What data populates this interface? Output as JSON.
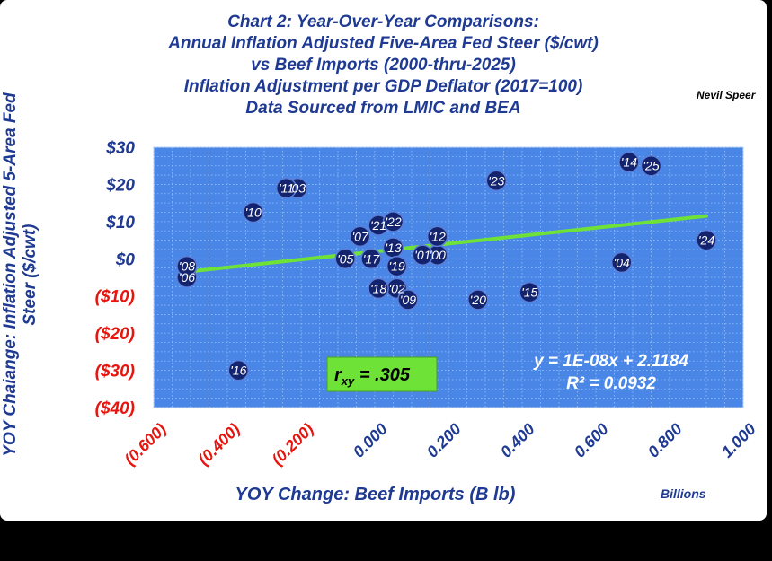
{
  "chart_data": {
    "type": "scatter",
    "title_lines": [
      "Chart 2:  Year-Over-Year Comparisons:",
      "Annual Inflation Adjusted Five-Area Fed Steer ($/cwt)",
      "vs Beef Imports (2000-thru-2025)",
      "Inflation Adjustment per GDP Deflator (2017=100)",
      "Data Sourced from LMIC and BEA"
    ],
    "author": "Nevil Speer",
    "xlabel": "YOY Change:  Beef Imports (B lb)",
    "xunit": "Billions",
    "ylabel": "YOY Chaiange: Inflation Adjusted 5-Area Fed Steer ($/cwt)",
    "xlim": [
      -0.6,
      1.0
    ],
    "ylim": [
      -40,
      30
    ],
    "x_ticks": [
      -0.6,
      -0.4,
      -0.2,
      0.0,
      0.2,
      0.4,
      0.6,
      0.8,
      1.0
    ],
    "x_tick_labels": [
      "(0.600)",
      "(0.400)",
      "(0.200)",
      "0.000",
      "0.200",
      "0.400",
      "0.600",
      "0.800",
      "1.000"
    ],
    "y_ticks": [
      30,
      20,
      10,
      0,
      -10,
      -20,
      -30,
      -40
    ],
    "y_tick_labels": [
      "$30",
      "$20",
      "$10",
      "$0",
      "($10)",
      "($20)",
      "($30)",
      "($40)"
    ],
    "grid": true,
    "series": [
      {
        "points": [
          {
            "label": "'00",
            "x": 0.17,
            "y": 1
          },
          {
            "label": "'01",
            "x": 0.13,
            "y": 1
          },
          {
            "label": "'02",
            "x": 0.06,
            "y": -8
          },
          {
            "label": "'03",
            "x": -0.21,
            "y": 19
          },
          {
            "label": "'04",
            "x": 0.67,
            "y": -1
          },
          {
            "label": "'05",
            "x": -0.08,
            "y": 0
          },
          {
            "label": "'06",
            "x": -0.51,
            "y": -5
          },
          {
            "label": "'07",
            "x": -0.04,
            "y": 6
          },
          {
            "label": "'08",
            "x": -0.51,
            "y": -2
          },
          {
            "label": "'09",
            "x": 0.09,
            "y": -11
          },
          {
            "label": "'10",
            "x": -0.33,
            "y": 12.5
          },
          {
            "label": "'11",
            "x": -0.24,
            "y": 19
          },
          {
            "label": "'12",
            "x": 0.17,
            "y": 6
          },
          {
            "label": "'13",
            "x": 0.05,
            "y": 3
          },
          {
            "label": "'14",
            "x": 0.69,
            "y": 26
          },
          {
            "label": "'15",
            "x": 0.42,
            "y": -9
          },
          {
            "label": "'16",
            "x": -0.37,
            "y": -30
          },
          {
            "label": "'17",
            "x": -0.01,
            "y": 0
          },
          {
            "label": "'18",
            "x": 0.01,
            "y": -8
          },
          {
            "label": "'19",
            "x": 0.06,
            "y": -2
          },
          {
            "label": "'20",
            "x": 0.28,
            "y": -11
          },
          {
            "label": "'21",
            "x": 0.01,
            "y": 9
          },
          {
            "label": "'22",
            "x": 0.05,
            "y": 10
          },
          {
            "label": "'23",
            "x": 0.33,
            "y": 21
          },
          {
            "label": "'24",
            "x": 0.9,
            "y": 5
          },
          {
            "label": "'25",
            "x": 0.75,
            "y": 25
          }
        ]
      }
    ],
    "trendline": {
      "x": [
        -0.51,
        0.9
      ],
      "y": [
        -3.5,
        11.5
      ]
    },
    "annotations": {
      "correlation": "r",
      "correlation_sub": "xy",
      "correlation_value": "= .305",
      "equation": "y = 1E-08x + 2.1184",
      "r_squared": "R² = 0.0932"
    },
    "colors": {
      "plot_bg": "#4a86e6",
      "grid": "#9cc0f5",
      "marker": "#13236e",
      "marker_edge": "#5b7ed8",
      "trendline": "#6ee236",
      "title": "#1f3a93",
      "axis_text": "#1f3a93",
      "negative_tick": "#e8150f",
      "r_box": "#6ee236"
    }
  }
}
